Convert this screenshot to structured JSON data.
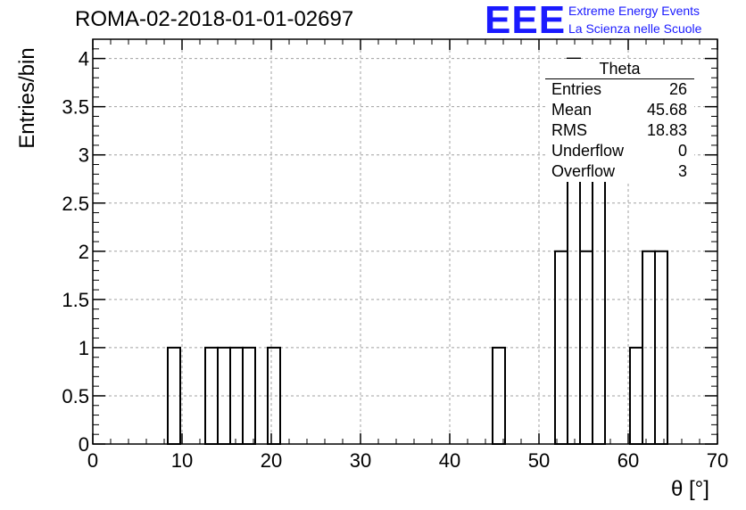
{
  "header": {
    "title": "ROMA-02-2018-01-01-02697",
    "logo_text": "EEE",
    "logo_line1": "Extreme Energy Events",
    "logo_line2": "La Scienza nelle Scuole",
    "accent": "#1a1aff"
  },
  "stats": {
    "title": "Theta",
    "rows": [
      {
        "label": "Entries",
        "value": "26"
      },
      {
        "label": "Mean",
        "value": "45.68"
      },
      {
        "label": "RMS",
        "value": "18.83"
      },
      {
        "label": "Underflow",
        "value": "0"
      },
      {
        "label": "Overflow",
        "value": "3"
      }
    ]
  },
  "chart_data": {
    "type": "bar",
    "style": "step-histogram",
    "xlabel": "θ [°]",
    "ylabel": "Entries/bin",
    "xlim": [
      0,
      70
    ],
    "ylim": [
      0,
      4.2
    ],
    "grid": true,
    "bin_edges": [
      0,
      1.4,
      2.8,
      4.2,
      5.6,
      7,
      8.4,
      9.8,
      11.2,
      12.6,
      14,
      15.4,
      16.8,
      18.2,
      19.6,
      21,
      22.4,
      23.8,
      25.2,
      26.6,
      28,
      29.4,
      30.8,
      32.2,
      33.6,
      35,
      36.4,
      37.8,
      39.2,
      40.6,
      42,
      43.4,
      44.8,
      46.2,
      47.6,
      49,
      50.4,
      51.8,
      53.2,
      54.6,
      56,
      57.4,
      58.8,
      60.2,
      61.6,
      63,
      64.4,
      65.8,
      67.2,
      68.6,
      70
    ],
    "values": [
      0,
      0,
      0,
      0,
      0,
      0,
      1,
      0,
      0,
      1,
      1,
      1,
      1,
      0,
      1,
      0,
      0,
      0,
      0,
      0,
      0,
      0,
      0,
      0,
      0,
      0,
      0,
      0,
      0,
      0,
      0,
      0,
      1,
      0,
      0,
      0,
      0,
      2,
      4,
      2,
      3,
      0,
      0,
      1,
      2,
      2,
      0,
      0,
      0,
      0
    ],
    "x_ticks": [
      0,
      10,
      20,
      30,
      40,
      50,
      60,
      70
    ],
    "x_tick_labels": [
      "0",
      "10",
      "20",
      "30",
      "40",
      "50",
      "60",
      "70"
    ],
    "y_ticks": [
      0,
      0.5,
      1,
      1.5,
      2,
      2.5,
      3,
      3.5,
      4
    ],
    "y_tick_labels": [
      "0",
      "0.5",
      "1",
      "1.5",
      "2",
      "2.5",
      "3",
      "3.5",
      "4"
    ]
  }
}
